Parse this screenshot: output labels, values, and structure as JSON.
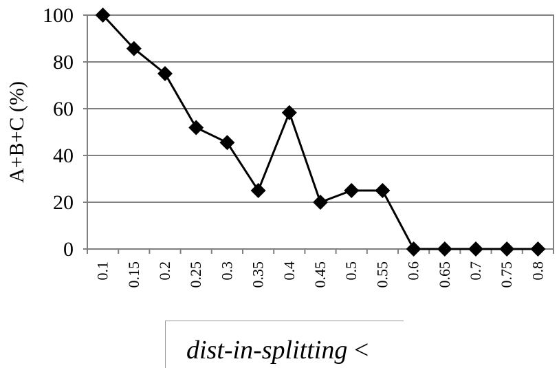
{
  "chart_data": {
    "type": "line",
    "x": [
      "0.1",
      "0.15",
      "0.2",
      "0.25",
      "0.3",
      "0.35",
      "0.4",
      "0.45",
      "0.5",
      "0.55",
      "0.6",
      "0.65",
      "0.7",
      "0.75",
      "0.8"
    ],
    "series": [
      {
        "values": [
          100,
          85.7,
          75,
          51.9,
          45.5,
          25,
          58.3,
          20,
          25,
          25,
          0,
          0,
          0,
          0,
          0
        ]
      }
    ],
    "ylabel": "A+B+C (%)",
    "xlabel_italic": "dist-in-splitting",
    "xlabel_suffix": " <",
    "ylim": [
      0,
      100
    ],
    "yticks": [
      "0",
      "20",
      "40",
      "60",
      "80",
      "100"
    ],
    "grid": true,
    "legend": "none",
    "colors": {
      "line": "#000000",
      "marker": "#000000",
      "grid": "#000000",
      "frame": "#808080"
    }
  }
}
